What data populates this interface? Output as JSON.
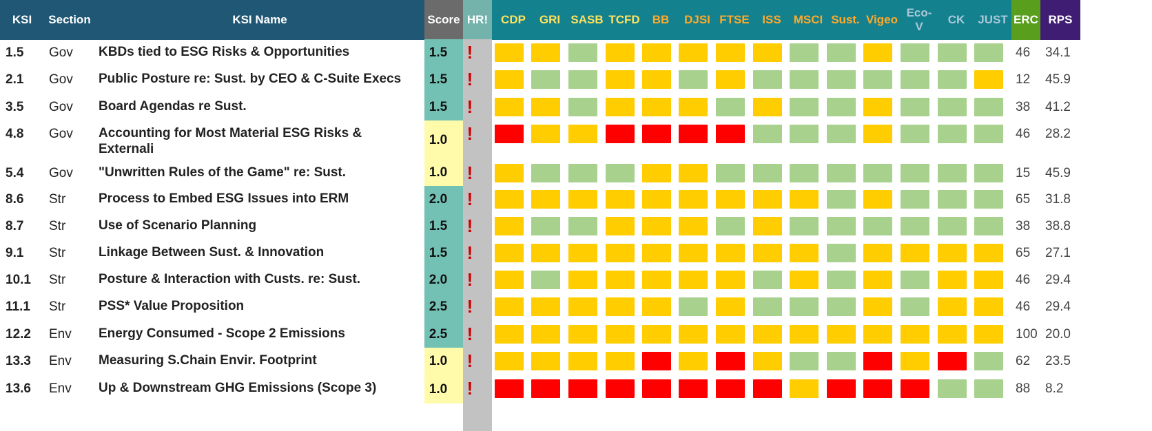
{
  "colors": {
    "header_main": "#1f5774",
    "header_score": "#6b6b6b",
    "header_hr": "#73b3ac",
    "header_frameworks": "#14818f",
    "header_erc": "#5a9e1e",
    "header_rps": "#3f1d73",
    "hr_column_bg": "#c2c2c2",
    "score_teal": "#72c1b4",
    "score_yellow": "#fffbaa",
    "status_yellow": "#ffcd00",
    "status_green": "#a8d18d",
    "status_red": "#ff0000"
  },
  "headers": {
    "ksi": "KSI",
    "section": "Section",
    "name": "KSI Name",
    "score": "Score",
    "hr": "HR!",
    "frameworks": [
      {
        "label": "CDP",
        "color": "#ffe15c"
      },
      {
        "label": "GRI",
        "color": "#ffe15c"
      },
      {
        "label": "SASB",
        "color": "#ffe15c"
      },
      {
        "label": "TCFD",
        "color": "#ffe15c"
      },
      {
        "label": "BB",
        "color": "#ffa928"
      },
      {
        "label": "DJSI",
        "color": "#ffa928"
      },
      {
        "label": "FTSE",
        "color": "#ffa928"
      },
      {
        "label": "ISS",
        "color": "#ffa928"
      },
      {
        "label": "MSCI",
        "color": "#ffa928"
      },
      {
        "label": "Sust.",
        "color": "#ffa928"
      },
      {
        "label": "Vigeo",
        "color": "#ffa928"
      },
      {
        "label": "Eco-\nV",
        "color": "#a9c8d8"
      },
      {
        "label": "CK",
        "color": "#a9c8d8"
      },
      {
        "label": "JUST",
        "color": "#a9c8d8"
      }
    ],
    "erc": "ERC",
    "rps": "RPS"
  },
  "hr_mark": "!",
  "rows": [
    {
      "ksi": "1.5",
      "section": "Gov",
      "name": "KBDs tied to ESG Risks & Opportunities",
      "score": "1.5",
      "score_style": "teal",
      "statuses": [
        "Y",
        "Y",
        "G",
        "Y",
        "Y",
        "Y",
        "Y",
        "Y",
        "G",
        "G",
        "Y",
        "G",
        "G",
        "G"
      ],
      "erc": "46",
      "rps": "34.1"
    },
    {
      "ksi": "2.1",
      "section": "Gov",
      "name": "Public Posture re: Sust. by CEO & C-Suite Execs",
      "score": "1.5",
      "score_style": "teal",
      "statuses": [
        "Y",
        "G",
        "G",
        "Y",
        "Y",
        "G",
        "Y",
        "G",
        "G",
        "G",
        "G",
        "G",
        "G",
        "Y"
      ],
      "erc": "12",
      "rps": "45.9"
    },
    {
      "ksi": "3.5",
      "section": "Gov",
      "name": "Board Agendas re Sust.",
      "score": "1.5",
      "score_style": "teal",
      "statuses": [
        "Y",
        "Y",
        "G",
        "Y",
        "Y",
        "Y",
        "G",
        "Y",
        "G",
        "G",
        "Y",
        "G",
        "G",
        "G"
      ],
      "erc": "38",
      "rps": "41.2"
    },
    {
      "ksi": "4.8",
      "section": "Gov",
      "name": "Accounting for Most Material ESG Risks & Externali",
      "score": "1.0",
      "score_style": "yellow",
      "statuses": [
        "R",
        "Y",
        "Y",
        "R",
        "R",
        "R",
        "R",
        "G",
        "G",
        "G",
        "Y",
        "G",
        "G",
        "G"
      ],
      "erc": "46",
      "rps": "28.2"
    },
    {
      "ksi": "5.4",
      "section": "Gov",
      "name": "\"Unwritten Rules of the Game\" re: Sust.",
      "score": "1.0",
      "score_style": "yellow",
      "statuses": [
        "Y",
        "G",
        "G",
        "G",
        "Y",
        "Y",
        "G",
        "G",
        "G",
        "G",
        "G",
        "G",
        "G",
        "G"
      ],
      "erc": "15",
      "rps": "45.9"
    },
    {
      "ksi": "8.6",
      "section": "Str",
      "name": "Process to Embed ESG Issues into ERM",
      "score": "2.0",
      "score_style": "teal",
      "statuses": [
        "Y",
        "Y",
        "Y",
        "Y",
        "Y",
        "Y",
        "Y",
        "Y",
        "Y",
        "G",
        "Y",
        "G",
        "G",
        "G"
      ],
      "erc": "65",
      "rps": "31.8"
    },
    {
      "ksi": "8.7",
      "section": "Str",
      "name": "Use of Scenario Planning",
      "score": "1.5",
      "score_style": "teal",
      "statuses": [
        "Y",
        "G",
        "G",
        "Y",
        "Y",
        "Y",
        "G",
        "Y",
        "G",
        "G",
        "G",
        "G",
        "G",
        "G"
      ],
      "erc": "38",
      "rps": "38.8"
    },
    {
      "ksi": "9.1",
      "section": "Str",
      "name": "Linkage Between Sust. & Innovation",
      "score": "1.5",
      "score_style": "teal",
      "statuses": [
        "Y",
        "Y",
        "Y",
        "Y",
        "Y",
        "Y",
        "Y",
        "Y",
        "Y",
        "G",
        "Y",
        "Y",
        "Y",
        "Y"
      ],
      "erc": "65",
      "rps": "27.1"
    },
    {
      "ksi": "10.1",
      "section": "Str",
      "name": "Posture & Interaction with Custs. re: Sust.",
      "score": "2.0",
      "score_style": "teal",
      "statuses": [
        "Y",
        "G",
        "Y",
        "Y",
        "Y",
        "Y",
        "Y",
        "G",
        "Y",
        "G",
        "Y",
        "G",
        "Y",
        "Y"
      ],
      "erc": "46",
      "rps": "29.4"
    },
    {
      "ksi": "11.1",
      "section": "Str",
      "name": "PSS* Value Proposition",
      "score": "2.5",
      "score_style": "teal",
      "statuses": [
        "Y",
        "Y",
        "Y",
        "Y",
        "Y",
        "G",
        "Y",
        "G",
        "G",
        "G",
        "Y",
        "G",
        "Y",
        "Y"
      ],
      "erc": "46",
      "rps": "29.4"
    },
    {
      "ksi": "12.2",
      "section": "Env",
      "name": "Energy Consumed - Scope 2 Emissions",
      "score": "2.5",
      "score_style": "teal",
      "statuses": [
        "Y",
        "Y",
        "Y",
        "Y",
        "Y",
        "Y",
        "Y",
        "Y",
        "Y",
        "Y",
        "Y",
        "Y",
        "Y",
        "Y"
      ],
      "erc": "100",
      "rps": "20.0"
    },
    {
      "ksi": "13.3",
      "section": "Env",
      "name": "Measuring S.Chain Envir. Footprint",
      "score": "1.0",
      "score_style": "yellow",
      "statuses": [
        "Y",
        "Y",
        "Y",
        "Y",
        "R",
        "Y",
        "R",
        "Y",
        "G",
        "G",
        "R",
        "Y",
        "R",
        "G"
      ],
      "erc": "62",
      "rps": "23.5"
    },
    {
      "ksi": "13.6",
      "section": "Env",
      "name": "Up & Downstream GHG Emissions (Scope 3)",
      "score": "1.0",
      "score_style": "yellow",
      "statuses": [
        "R",
        "R",
        "R",
        "R",
        "R",
        "R",
        "R",
        "R",
        "Y",
        "R",
        "R",
        "R",
        "G",
        "G"
      ],
      "erc": "88",
      "rps": "8.2"
    }
  ]
}
